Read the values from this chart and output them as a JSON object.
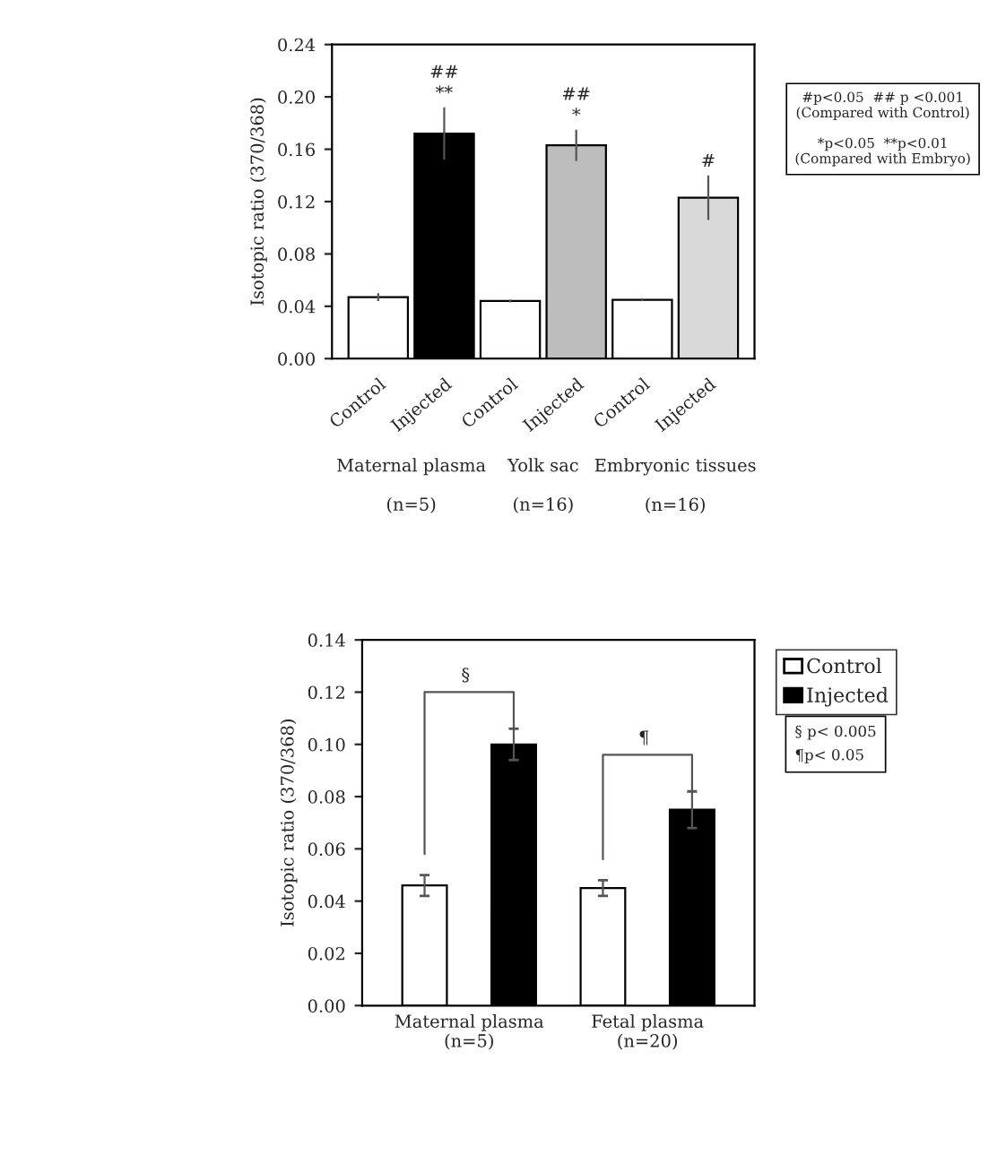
{
  "chart_data": [
    {
      "type": "bar",
      "ylabel": "Isotopic ratio (370/368)",
      "categories": [
        "Control",
        "Injected",
        "Control",
        "Injected",
        "Control",
        "Injected"
      ],
      "values": [
        0.047,
        0.172,
        0.044,
        0.163,
        0.045,
        0.123
      ],
      "colors": [
        "#ffffff",
        "#000000",
        "#ffffff",
        "#bdbdbd",
        "#ffffff",
        "#d9d9d9"
      ],
      "errors": [
        0.003,
        0.02,
        0.001,
        0.012,
        0.001,
        0.017
      ],
      "value_labels": [
        null,
        "##\n**",
        null,
        "##\n*",
        null,
        "#"
      ],
      "ylim": [
        0,
        0.24
      ],
      "yticks": [
        {
          "value": 0,
          "label": "0.00"
        },
        {
          "value": 0.04,
          "label": "0.04"
        },
        {
          "value": 0.08,
          "label": "0.08"
        },
        {
          "value": 0.12,
          "label": "0.12"
        },
        {
          "value": 0.16,
          "label": "0.16"
        },
        {
          "value": 0.2,
          "label": "0.20"
        },
        {
          "value": 0.24,
          "label": "0.24"
        }
      ],
      "annotations": [
        "Maternal plasma\n\n(n=5)",
        "Yolk sac\n\n(n=16)",
        "Embryonic tissues\n\n(n=16)",
        "#p<0.05  ## p <0.001\n(Compared with Control)\n\n*p<0.05  **p<0.01\n(Compared with Embryo)"
      ],
      "grid": false
    },
    {
      "type": "bar",
      "ylabel": "Isotopic ratio (370/368)",
      "categories": [
        "Maternal plasma\n(n=5)",
        "Fetal plasma\n(n=20)"
      ],
      "series": [
        {
          "name": "Control",
          "color": "#ffffff",
          "values": [
            0.046,
            0.045
          ],
          "errors": [
            0.004,
            0.003
          ]
        },
        {
          "name": "Injected",
          "color": "#000000",
          "values": [
            0.1,
            0.075
          ],
          "errors": [
            0.006,
            0.007
          ]
        }
      ],
      "ylim": [
        0,
        0.14
      ],
      "yticks": [
        {
          "value": 0,
          "label": "0.00"
        },
        {
          "value": 0.02,
          "label": "0.02"
        },
        {
          "value": 0.04,
          "label": "0.04"
        },
        {
          "value": 0.06,
          "label": "0.06"
        },
        {
          "value": 0.08,
          "label": "0.08"
        },
        {
          "value": 0.1,
          "label": "0.10"
        },
        {
          "value": 0.12,
          "label": "0.12"
        },
        {
          "value": 0.14,
          "label": "0.14"
        }
      ],
      "annotations": [
        "§",
        "¶",
        "§ p< 0.005\n¶p< 0.05"
      ],
      "grid": false,
      "legend": "right"
    }
  ]
}
